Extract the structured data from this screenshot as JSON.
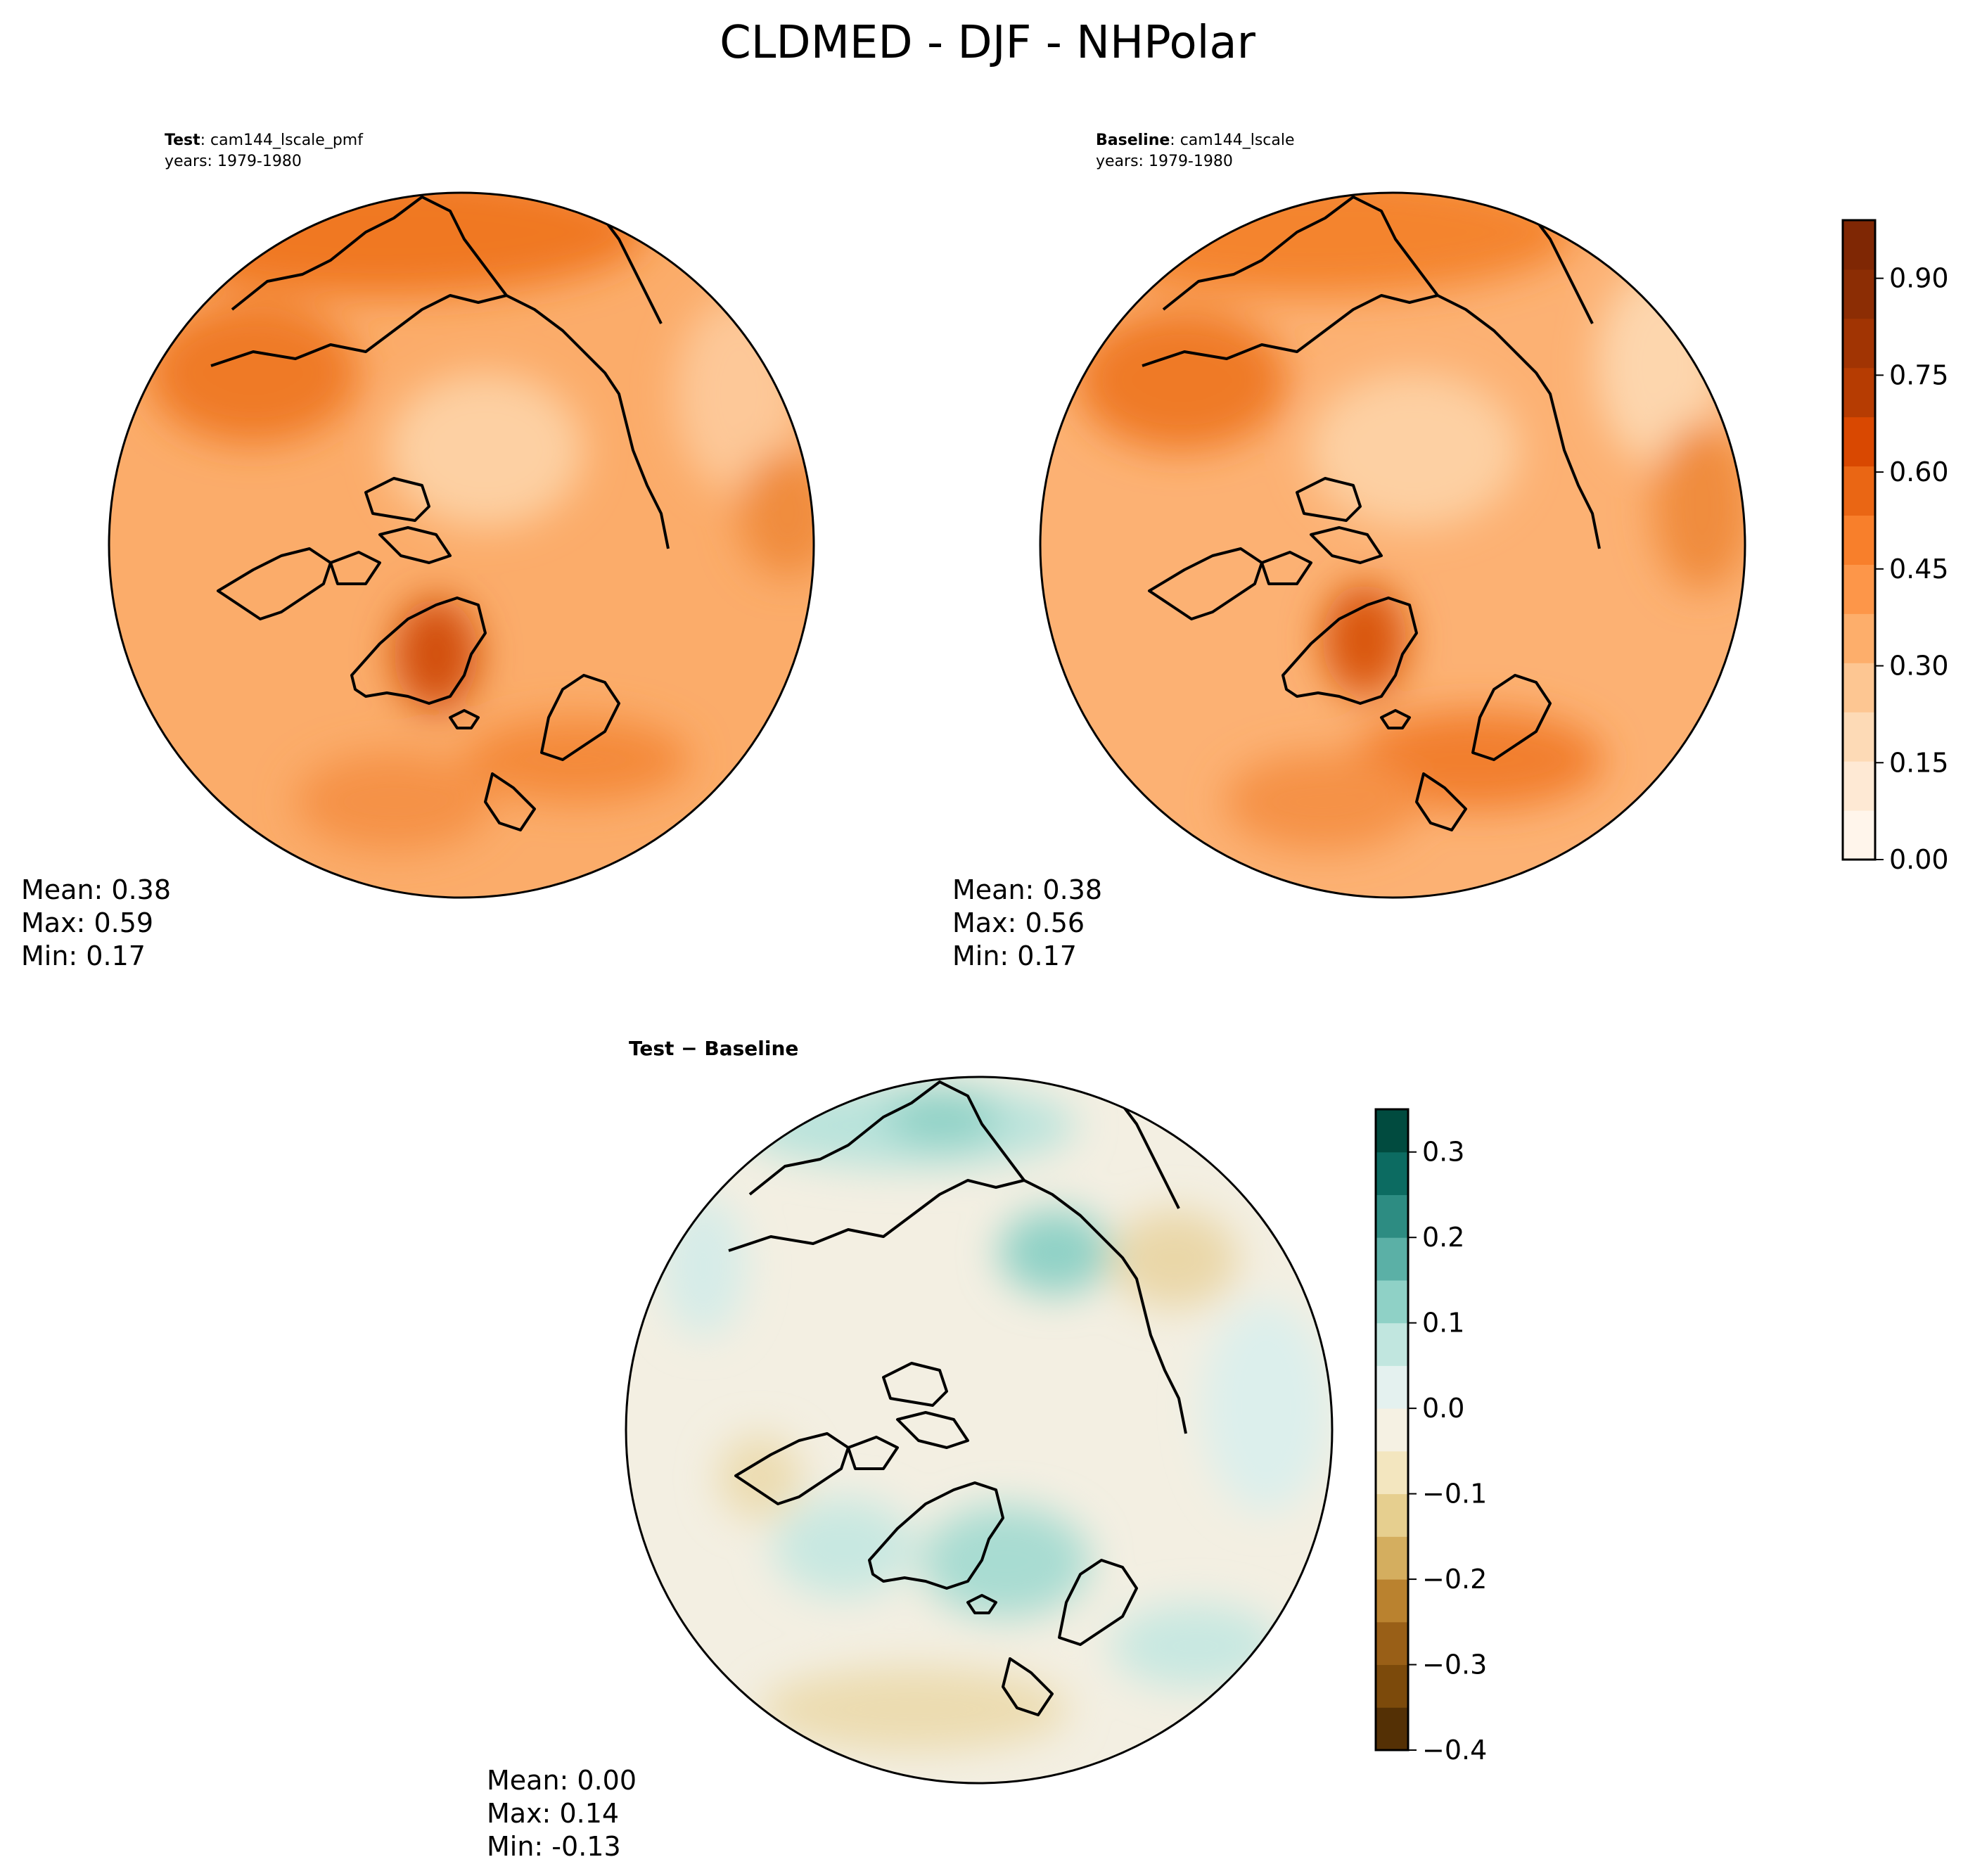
{
  "figure": {
    "title": "CLDMED - DJF - NHPolar"
  },
  "panels": {
    "test": {
      "label_bold": "Test",
      "label_rest": ": cam144_lscale_pmf",
      "years": "years: 1979-1980",
      "mean": "Mean:  0.38",
      "max": "Max:  0.59",
      "min": "Min:  0.17"
    },
    "baseline": {
      "label_bold": "Baseline",
      "label_rest": ": cam144_lscale",
      "years": "years: 1979-1980",
      "mean": "Mean:  0.38",
      "max": "Max:  0.56",
      "min": "Min:  0.17"
    },
    "diff": {
      "label_bold": "Test − Baseline",
      "mean": "Mean:  0.00",
      "max": "Max:  0.14",
      "min": "Min: -0.13"
    }
  },
  "colorbars": {
    "main": {
      "ticks": [
        "0.00",
        "0.15",
        "0.30",
        "0.45",
        "0.60",
        "0.75",
        "0.90"
      ],
      "colors": [
        "#fff5eb",
        "#fee9d4",
        "#fddab6",
        "#fdc692",
        "#fdae6b",
        "#fd9649",
        "#f87f2b",
        "#ea6614",
        "#d94801",
        "#b63c02",
        "#a13403",
        "#8c2d04",
        "#7f2704"
      ]
    },
    "diff": {
      "ticks": [
        "−0.4",
        "−0.3",
        "−0.2",
        "−0.1",
        "0.0",
        "0.1",
        "0.2",
        "0.3"
      ],
      "colors": [
        "#543005",
        "#7c4a0b",
        "#995f17",
        "#ba822f",
        "#d4ae5f",
        "#e6cf8f",
        "#f3e6bf",
        "#f5f1e3",
        "#e4f1ef",
        "#c1e6df",
        "#8fd1c6",
        "#5bb0a6",
        "#2d8c82",
        "#0c6b61",
        "#014b3f"
      ]
    },
    "panel_colors": {
      "test_base": "#fbac6a",
      "baseline_base": "#fcb173",
      "diff_base": "#f3efe2"
    }
  }
}
